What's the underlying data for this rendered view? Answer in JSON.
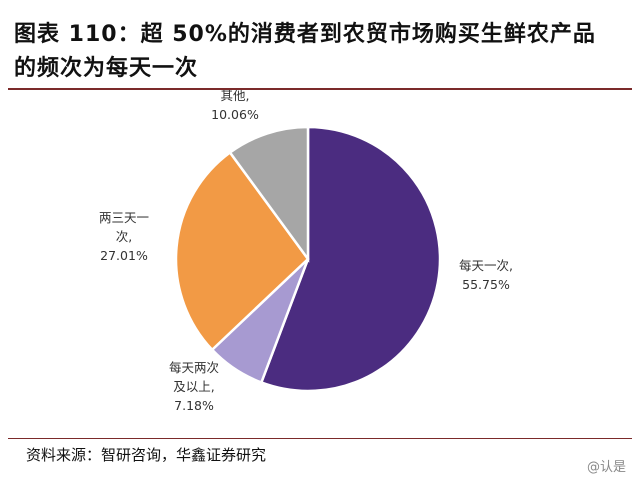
{
  "title": "图表 110：超 50%的消费者到农贸市场购买生鲜农产品的频次为每天一次",
  "source": "资料来源：智研咨询，华鑫证券研究",
  "watermark": "@认是",
  "chart_data": {
    "type": "pie",
    "title": "",
    "slices": [
      {
        "label_lines": [
          "每天一次,",
          "55.75%"
        ],
        "value": 55.75,
        "color": "#4b2c80"
      },
      {
        "label_lines": [
          "每天两次",
          "及以上,",
          "7.18%"
        ],
        "value": 7.18,
        "color": "#a79ad1"
      },
      {
        "label_lines": [
          "两三天一",
          "次,",
          "27.01%"
        ],
        "value": 27.01,
        "color": "#f29a45"
      },
      {
        "label_lines": [
          "其他,",
          "10.06%"
        ],
        "value": 10.06,
        "color": "#a6a6a6"
      }
    ]
  }
}
